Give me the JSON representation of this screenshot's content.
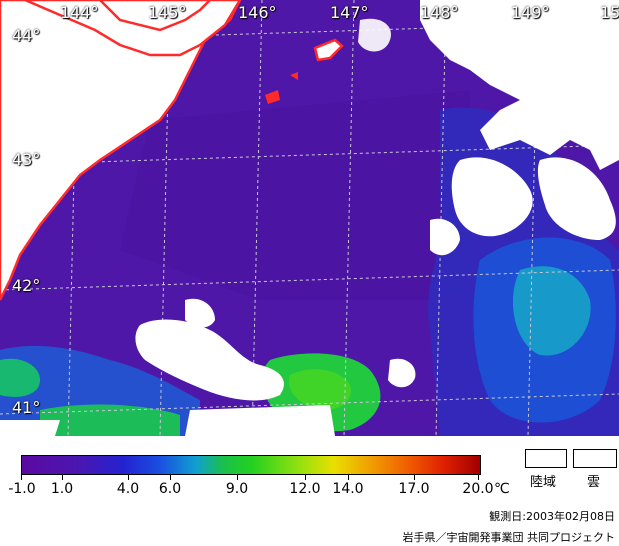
{
  "map": {
    "longitude_labels": [
      "144°",
      "145°",
      "146°",
      "147°",
      "148°",
      "149°",
      "15"
    ],
    "latitude_labels": [
      "44°",
      "43°",
      "42°",
      "41°"
    ],
    "colors": {
      "sea_cold": "#4f17a8",
      "coast_line": "#ff2a2a",
      "land_cloud": "#ffffff",
      "grid": "#c8c8d8"
    }
  },
  "legend": {
    "scale_ticks": [
      "-1.0",
      "1.0",
      "4.0",
      "6.0",
      "9.0",
      "12.0",
      "14.0",
      "17.0",
      "20.0"
    ],
    "unit": "℃",
    "land_label": "陸域",
    "cloud_label": "雲"
  },
  "footer": {
    "observation_date": "観測日:2003年02月08日",
    "credit": "岩手県／宇宙開発事業団 共同プロジェクト"
  }
}
